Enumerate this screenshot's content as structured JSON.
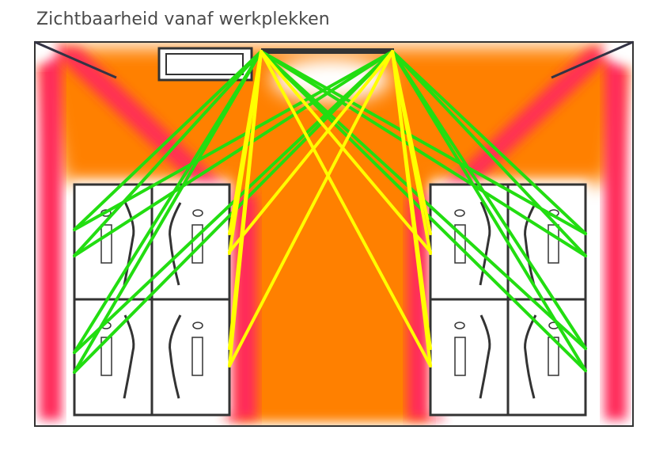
{
  "title": "Zichtbaarheid vanaf werkplekken",
  "colors": {
    "background_zone": "#ff8000",
    "wall_zone": "#ff2a5a",
    "green_sightline": "#22dd11",
    "yellow_sightline": "#ffff00",
    "furniture_outline": "#333333",
    "room_border": "#333333"
  },
  "legend": []
}
